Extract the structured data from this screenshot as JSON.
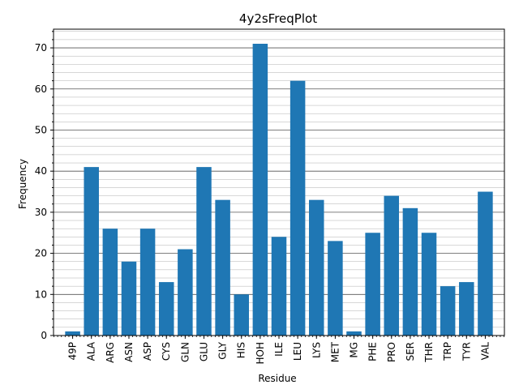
{
  "chart_data": {
    "type": "bar",
    "title": "4y2sFreqPlot",
    "xlabel": "Residue",
    "ylabel": "Frequency",
    "categories": [
      "49P",
      "ALA",
      "ARG",
      "ASN",
      "ASP",
      "CYS",
      "GLN",
      "GLU",
      "GLY",
      "HIS",
      "HOH",
      "ILE",
      "LEU",
      "LYS",
      "MET",
      "MG",
      "PHE",
      "PRO",
      "SER",
      "THR",
      "TRP",
      "TYR",
      "VAL"
    ],
    "values": [
      1,
      41,
      26,
      18,
      26,
      13,
      21,
      41,
      33,
      10,
      71,
      24,
      62,
      33,
      23,
      1,
      25,
      34,
      31,
      25,
      12,
      13,
      35
    ],
    "ylim": [
      0,
      74.55
    ],
    "yticks": [
      0,
      10,
      20,
      30,
      40,
      50,
      60,
      70
    ],
    "grid": "horizontal, major and minor",
    "bar_color": "#1f77b4"
  }
}
